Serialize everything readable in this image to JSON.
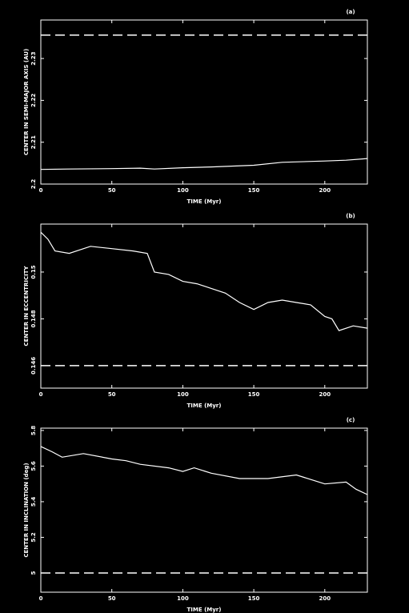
{
  "chart_data": [
    {
      "type": "line",
      "annotation": "(a)",
      "x_label": "TIME (Myr)",
      "y_label": "CENTER IN SEMI-MAJOR AXIS (AU)",
      "xlim": [
        0,
        230
      ],
      "xticks": [
        0,
        50,
        100,
        150,
        200
      ],
      "ylim": [
        2.2,
        2.2392
      ],
      "yticks": [
        2.2,
        2.21,
        2.22,
        2.23
      ],
      "reference_line": 2.2356,
      "color": "#ffffff",
      "x": [
        0,
        20,
        50,
        70,
        80,
        100,
        120,
        150,
        170,
        200,
        215,
        230
      ],
      "values": [
        2.2035,
        2.2036,
        2.2037,
        2.2038,
        2.2036,
        2.2039,
        2.2041,
        2.2045,
        2.2052,
        2.2055,
        2.2057,
        2.2061
      ]
    },
    {
      "type": "line",
      "annotation": "(b)",
      "x_label": "TIME (Myr)",
      "y_label": "CENTER IN ECCENTRICITY",
      "xlim": [
        0,
        230
      ],
      "xticks": [
        0,
        50,
        100,
        150,
        200
      ],
      "ylim": [
        0.14504,
        0.15205
      ],
      "yticks": [
        0.146,
        0.148,
        0.15
      ],
      "reference_line": 0.146,
      "color": "#ffffff",
      "x": [
        0,
        5,
        10,
        20,
        35,
        50,
        65,
        75,
        80,
        90,
        100,
        110,
        120,
        130,
        140,
        150,
        160,
        170,
        180,
        190,
        200,
        205,
        210,
        220,
        230
      ],
      "values": [
        0.1517,
        0.1514,
        0.1509,
        0.1508,
        0.1511,
        0.151,
        0.1509,
        0.1508,
        0.15,
        0.1499,
        0.1496,
        0.1495,
        0.1493,
        0.1491,
        0.1487,
        0.1484,
        0.1487,
        0.1488,
        0.1487,
        0.1486,
        0.1481,
        0.148,
        0.1475,
        0.1477,
        0.1476
      ]
    },
    {
      "type": "line",
      "annotation": "(c)",
      "x_label": "TIME (Myr)",
      "y_label": "CENTER IN INCLINATION (deg)",
      "xlim": [
        0,
        230
      ],
      "xticks": [
        0,
        50,
        100,
        150,
        200
      ],
      "ylim": [
        4.892,
        5.813
      ],
      "yticks": [
        5,
        5.2,
        5.4,
        5.6,
        5.8
      ],
      "reference_line": 5.0,
      "color": "#ffffff",
      "x": [
        0,
        8,
        15,
        30,
        50,
        60,
        70,
        90,
        100,
        108,
        120,
        140,
        160,
        180,
        200,
        215,
        222,
        230
      ],
      "values": [
        5.71,
        5.68,
        5.65,
        5.67,
        5.64,
        5.63,
        5.61,
        5.59,
        5.57,
        5.59,
        5.56,
        5.53,
        5.53,
        5.55,
        5.5,
        5.51,
        5.47,
        5.44
      ]
    }
  ]
}
